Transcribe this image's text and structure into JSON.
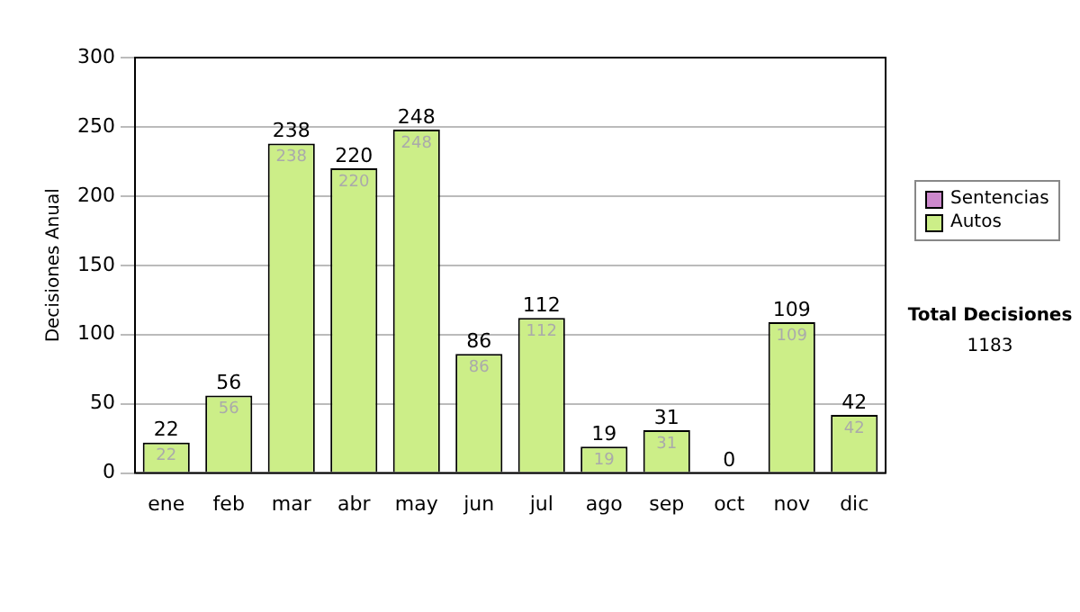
{
  "chart_data": {
    "type": "bar",
    "stacked": true,
    "ylabel": "Decisiones Anual",
    "categories": [
      "ene",
      "feb",
      "mar",
      "abr",
      "may",
      "jun",
      "jul",
      "ago",
      "sep",
      "oct",
      "nov",
      "dic"
    ],
    "series": [
      {
        "name": "Sentencias",
        "color": "#cc88cc",
        "values": [
          null,
          null,
          null,
          null,
          null,
          null,
          null,
          null,
          null,
          null,
          null,
          null
        ]
      },
      {
        "name": "Autos",
        "color": "#ccee88",
        "values": [
          22,
          56,
          238,
          220,
          248,
          86,
          112,
          19,
          31,
          0,
          109,
          42
        ],
        "value_labels": [
          "22",
          "56",
          "238",
          "220",
          "248",
          "86",
          "112",
          "19",
          "31",
          null,
          "109",
          "42"
        ]
      }
    ],
    "totals": [
      "22",
      "56",
      "238",
      "220",
      "248",
      "86",
      "112",
      "19",
      "31",
      "0",
      "109",
      "42"
    ],
    "ylim": [
      0,
      300
    ],
    "yticks": [
      0,
      50,
      100,
      150,
      200,
      250,
      300
    ],
    "grid": "y",
    "legend": "right",
    "annotations": [
      "Total Decisiones",
      "1183"
    ]
  }
}
